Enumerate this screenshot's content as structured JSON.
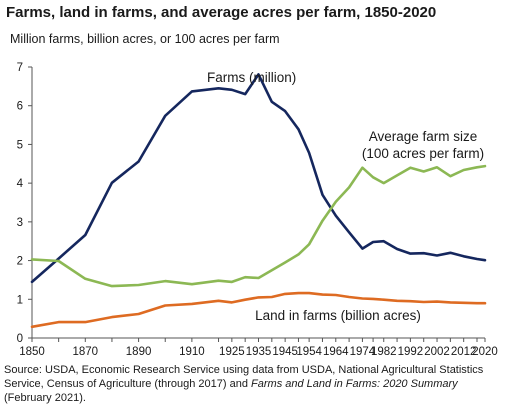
{
  "title": "Farms, land in farms, and average acres per farm, 1850-2020",
  "subtitle": "Million farms, billion acres, or 100 acres per farm",
  "source": {
    "prefix": "Source: USDA, Economic Research Service using data from USDA, National Agricultural Statistics Service, Census of Agriculture (through 2017) and ",
    "italic": "Farms and Land in Farms: 2020 Summary",
    "suffix": " (February 2021)."
  },
  "chart_data": {
    "type": "line",
    "title": "Farms, land in farms, and average acres per farm, 1850-2020",
    "ylabel": "Million farms, billion acres, or 100 acres per farm",
    "ylim": [
      0,
      7
    ],
    "yticks": [
      0,
      1,
      2,
      3,
      4,
      5,
      6,
      7
    ],
    "xticks": [
      "1850",
      "1870",
      "1890",
      "1910",
      "1925",
      "1935",
      "1945",
      "1954",
      "1964",
      "1974",
      "1982",
      "1992",
      "2002",
      "2012",
      "2020"
    ],
    "x": [
      1850,
      1860,
      1870,
      1880,
      1890,
      1900,
      1910,
      1920,
      1925,
      1930,
      1935,
      1940,
      1945,
      1950,
      1954,
      1959,
      1964,
      1969,
      1974,
      1978,
      1982,
      1987,
      1992,
      1997,
      2002,
      2007,
      2012,
      2017,
      2020
    ],
    "grid": false,
    "series": [
      {
        "name": "Farms (million)",
        "color": "#15275e",
        "values": [
          1.45,
          2.05,
          2.66,
          4.01,
          4.56,
          5.74,
          6.37,
          6.45,
          6.41,
          6.3,
          6.81,
          6.1,
          5.86,
          5.39,
          4.78,
          3.7,
          3.16,
          2.73,
          2.31,
          2.48,
          2.5,
          2.3,
          2.18,
          2.19,
          2.13,
          2.2,
          2.11,
          2.04,
          2.01
        ],
        "label": "Farms (million)"
      },
      {
        "name": "Average farm size (100 acres per farm)",
        "color": "#8cb854",
        "values": [
          2.03,
          1.99,
          1.53,
          1.34,
          1.37,
          1.47,
          1.39,
          1.48,
          1.45,
          1.57,
          1.55,
          1.75,
          1.95,
          2.16,
          2.42,
          3.03,
          3.52,
          3.89,
          4.4,
          4.15,
          4.0,
          4.2,
          4.4,
          4.3,
          4.41,
          4.18,
          4.34,
          4.41,
          4.44
        ],
        "label": [
          "Average farm size",
          "(100 acres per farm)"
        ]
      },
      {
        "name": "Land in farms (billion acres)",
        "color": "#de6b22",
        "values": [
          0.29,
          0.41,
          0.41,
          0.54,
          0.62,
          0.84,
          0.88,
          0.96,
          0.92,
          0.99,
          1.05,
          1.06,
          1.14,
          1.16,
          1.16,
          1.12,
          1.11,
          1.06,
          1.02,
          1.01,
          0.99,
          0.96,
          0.95,
          0.93,
          0.94,
          0.92,
          0.91,
          0.9,
          0.9
        ],
        "label": "Land in farms (billion acres)"
      }
    ]
  }
}
